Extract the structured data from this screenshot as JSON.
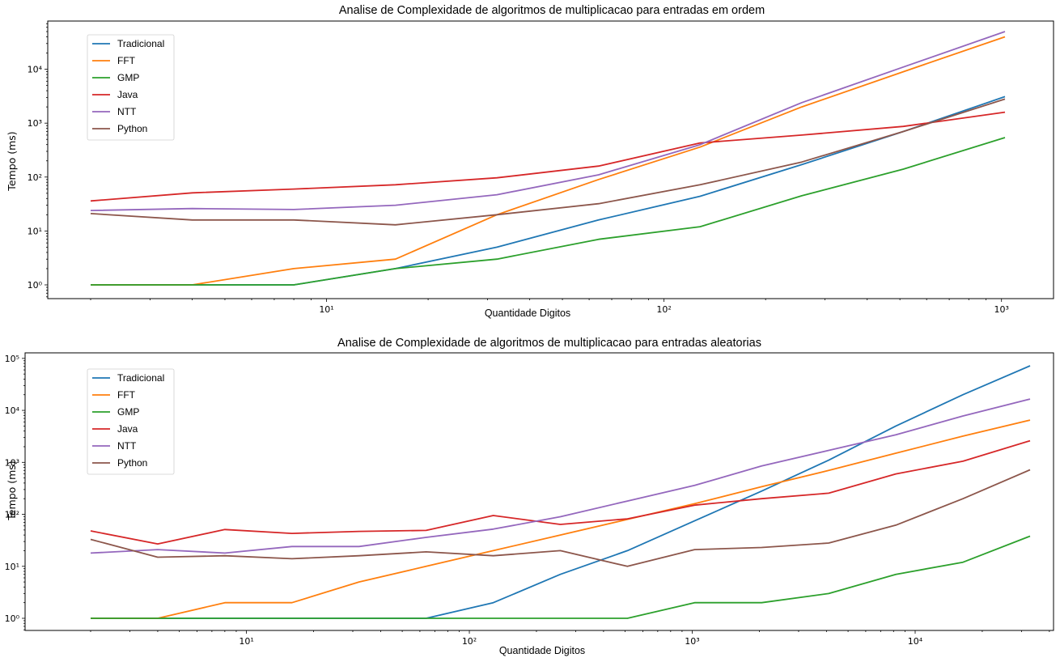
{
  "chart_data": [
    {
      "type": "line",
      "title": "Analise de Complexidade de algoritmos de multiplicacao para entradas em ordem",
      "xlabel": "Quantidade Digitos",
      "ylabel": "Tempo (ms)",
      "xscale": "log",
      "yscale": "log",
      "x_ticks": [
        {
          "v": 10,
          "label": "10¹"
        },
        {
          "v": 100,
          "label": "10²"
        },
        {
          "v": 1000,
          "label": "10³"
        }
      ],
      "y_ticks": [
        {
          "v": 1,
          "label": "10⁰"
        },
        {
          "v": 10,
          "label": "10¹"
        },
        {
          "v": 100,
          "label": "10²"
        },
        {
          "v": 1000,
          "label": "10³"
        },
        {
          "v": 10000,
          "label": "10⁴"
        }
      ],
      "legend": "upper-left",
      "grid": false,
      "x": [
        2,
        4,
        8,
        16,
        32,
        64,
        128,
        256,
        512,
        1024
      ],
      "series": [
        {
          "name": "Tradicional",
          "color": "#1f77b4",
          "values": [
            1,
            1,
            1,
            2,
            5,
            16,
            44,
            170,
            700,
            3100
          ]
        },
        {
          "name": "FFT",
          "color": "#ff7f0e",
          "values": [
            1,
            1,
            2,
            3,
            20,
            90,
            360,
            2000,
            9000,
            40000
          ]
        },
        {
          "name": "GMP",
          "color": "#2ca02c",
          "values": [
            1,
            1,
            1,
            2,
            3,
            7,
            12,
            45,
            140,
            540
          ]
        },
        {
          "name": "Java",
          "color": "#d62728",
          "values": [
            36,
            51,
            60,
            72,
            97,
            160,
            430,
            600,
            870,
            1600
          ]
        },
        {
          "name": "NTT",
          "color": "#9467bd",
          "values": [
            24,
            26,
            25,
            30,
            47,
            110,
            400,
            2400,
            11000,
            50000
          ]
        },
        {
          "name": "Python",
          "color": "#8c564b",
          "values": [
            21,
            16,
            16,
            13,
            20,
            32,
            72,
            190,
            700,
            2800
          ]
        }
      ]
    },
    {
      "type": "line",
      "title": "Analise de Complexidade de algoritmos de multiplicacao para entradas aleatorias",
      "xlabel": "Quantidade Digitos",
      "ylabel": "Tempo (ms)",
      "xscale": "log",
      "yscale": "log",
      "x_ticks": [
        {
          "v": 10,
          "label": "10¹"
        },
        {
          "v": 100,
          "label": "10²"
        },
        {
          "v": 1000,
          "label": "10³"
        },
        {
          "v": 10000,
          "label": "10⁴"
        }
      ],
      "y_ticks": [
        {
          "v": 1,
          "label": "10⁰"
        },
        {
          "v": 10,
          "label": "10¹"
        },
        {
          "v": 100,
          "label": "10²"
        },
        {
          "v": 1000,
          "label": "10³"
        },
        {
          "v": 10000,
          "label": "10⁴"
        },
        {
          "v": 100000,
          "label": "10⁵"
        }
      ],
      "legend": "upper-left",
      "grid": false,
      "x": [
        2,
        4,
        8,
        16,
        32,
        64,
        128,
        256,
        512,
        1024,
        2048,
        4096,
        8192,
        16384,
        32768
      ],
      "series": [
        {
          "name": "Tradicional",
          "color": "#1f77b4",
          "values": [
            1,
            1,
            1,
            1,
            1,
            1,
            2,
            7,
            20,
            75,
            280,
            1100,
            5000,
            20000,
            72000
          ]
        },
        {
          "name": "FFT",
          "color": "#ff7f0e",
          "values": [
            1,
            1,
            2,
            2,
            5,
            10,
            20,
            40,
            80,
            160,
            340,
            700,
            1500,
            3200,
            6500
          ]
        },
        {
          "name": "GMP",
          "color": "#2ca02c",
          "values": [
            1,
            1,
            1,
            1,
            1,
            1,
            1,
            1,
            1,
            2,
            2,
            3,
            7,
            12,
            38
          ]
        },
        {
          "name": "Java",
          "color": "#d62728",
          "values": [
            48,
            27,
            51,
            43,
            47,
            49,
            95,
            64,
            82,
            150,
            200,
            255,
            600,
            1050,
            2600
          ]
        },
        {
          "name": "NTT",
          "color": "#9467bd",
          "values": [
            18,
            21,
            18,
            24,
            24,
            36,
            52,
            90,
            180,
            360,
            850,
            1700,
            3400,
            7800,
            16500
          ]
        },
        {
          "name": "Python",
          "color": "#8c564b",
          "values": [
            33,
            15,
            16,
            14,
            16,
            19,
            16,
            20,
            10,
            21,
            23,
            28,
            62,
            200,
            720
          ]
        }
      ]
    }
  ]
}
